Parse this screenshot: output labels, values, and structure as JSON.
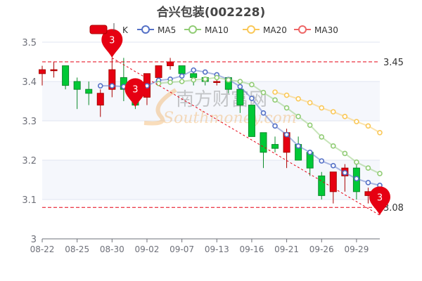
{
  "chart_data": {
    "type": "candlestick",
    "title": "合兴包装(002228)",
    "legend": {
      "position": "top",
      "items": [
        {
          "name": "K",
          "color": "#e60012"
        },
        {
          "name": "MA5",
          "color": "#5470c6"
        },
        {
          "name": "MA10",
          "color": "#91cc75"
        },
        {
          "name": "MA20",
          "color": "#fac858"
        },
        {
          "name": "MA30",
          "color": "#ee6666"
        }
      ]
    },
    "ylim": [
      3,
      3.5
    ],
    "yticks": [
      "3",
      "3.1",
      "3.2",
      "3.3",
      "3.4",
      "3.5"
    ],
    "xticks": [
      {
        "index": 0,
        "label": "08-22"
      },
      {
        "index": 3,
        "label": "08-25"
      },
      {
        "index": 6,
        "label": "08-30"
      },
      {
        "index": 9,
        "label": "09-02"
      },
      {
        "index": 12,
        "label": "09-07"
      },
      {
        "index": 15,
        "label": "09-13"
      },
      {
        "index": 18,
        "label": "09-16"
      },
      {
        "index": 21,
        "label": "09-21"
      },
      {
        "index": 24,
        "label": "09-26"
      },
      {
        "index": 27,
        "label": "09-29"
      }
    ],
    "count": 30,
    "up_color": "#e60012",
    "down_color": "#00c936",
    "candles_ocLh": [
      [
        3.42,
        3.43,
        3.39,
        3.44
      ],
      [
        3.43,
        3.43,
        3.41,
        3.45
      ],
      [
        3.44,
        3.39,
        3.38,
        3.44
      ],
      [
        3.4,
        3.38,
        3.33,
        3.41
      ],
      [
        3.38,
        3.37,
        3.34,
        3.4
      ],
      [
        3.34,
        3.37,
        3.31,
        3.38
      ],
      [
        3.38,
        3.43,
        3.36,
        3.46
      ],
      [
        3.41,
        3.38,
        3.35,
        3.46
      ],
      [
        3.38,
        3.34,
        3.33,
        3.39
      ],
      [
        3.36,
        3.42,
        3.34,
        3.42
      ],
      [
        3.41,
        3.44,
        3.41,
        3.44
      ],
      [
        3.44,
        3.45,
        3.43,
        3.46
      ],
      [
        3.44,
        3.42,
        3.42,
        3.44
      ],
      [
        3.42,
        3.41,
        3.39,
        3.43
      ],
      [
        3.41,
        3.4,
        3.39,
        3.41
      ],
      [
        3.4,
        3.4,
        3.39,
        3.41
      ],
      [
        3.41,
        3.38,
        3.37,
        3.41
      ],
      [
        3.38,
        3.34,
        3.32,
        3.39
      ],
      [
        3.34,
        3.26,
        3.26,
        3.34
      ],
      [
        3.27,
        3.22,
        3.18,
        3.27
      ],
      [
        3.24,
        3.23,
        3.22,
        3.26
      ],
      [
        3.22,
        3.27,
        3.18,
        3.28
      ],
      [
        3.24,
        3.2,
        3.2,
        3.26
      ],
      [
        3.22,
        3.18,
        3.16,
        3.22
      ],
      [
        3.16,
        3.11,
        3.1,
        3.17
      ],
      [
        3.12,
        3.17,
        3.09,
        3.17
      ],
      [
        3.16,
        3.18,
        3.12,
        3.19
      ],
      [
        3.18,
        3.12,
        3.1,
        3.19
      ],
      [
        3.11,
        3.12,
        3.09,
        3.13
      ],
      null
    ],
    "series": [
      {
        "name": "MA5",
        "color": "#5470c6",
        "values": [
          null,
          null,
          null,
          null,
          null,
          3.389,
          3.389,
          3.387,
          3.387,
          3.389,
          3.403,
          3.406,
          3.414,
          3.429,
          3.424,
          3.417,
          3.405,
          3.387,
          3.357,
          3.32,
          3.287,
          3.265,
          3.236,
          3.22,
          3.198,
          3.186,
          3.168,
          3.153,
          3.143,
          3.136
        ]
      },
      {
        "name": "MA10",
        "color": "#91cc75",
        "values": [
          null,
          null,
          null,
          null,
          null,
          null,
          null,
          null,
          null,
          null,
          3.395,
          3.398,
          3.4,
          3.404,
          3.406,
          3.41,
          3.404,
          3.4,
          3.392,
          3.372,
          3.353,
          3.333,
          3.311,
          3.289,
          3.259,
          3.236,
          3.217,
          3.195,
          3.18,
          3.166
        ]
      },
      {
        "name": "MA20",
        "color": "#fac858",
        "values": [
          null,
          null,
          null,
          null,
          null,
          null,
          null,
          null,
          null,
          null,
          null,
          null,
          null,
          null,
          null,
          null,
          null,
          null,
          null,
          null,
          3.373,
          3.365,
          3.356,
          3.346,
          3.333,
          3.323,
          3.311,
          3.298,
          3.287,
          3.27
        ]
      }
    ],
    "mark_lines": [
      {
        "value": 3.45,
        "label": "3.45"
      },
      {
        "value": 3.08,
        "label": "3.08"
      }
    ],
    "trend_line": {
      "from": {
        "index": 6,
        "value": 3.46
      },
      "to": {
        "index": 29,
        "value": 3.06
      }
    },
    "mark_points": [
      {
        "index": 6,
        "value": 3.46,
        "label": "3"
      },
      {
        "index": 8,
        "value": 3.335,
        "label": "3"
      },
      {
        "index": 29,
        "value": 3.06,
        "label": "3"
      }
    ],
    "watermark": {
      "cn": "南方财富网",
      "en": "Southmoney.com"
    }
  }
}
